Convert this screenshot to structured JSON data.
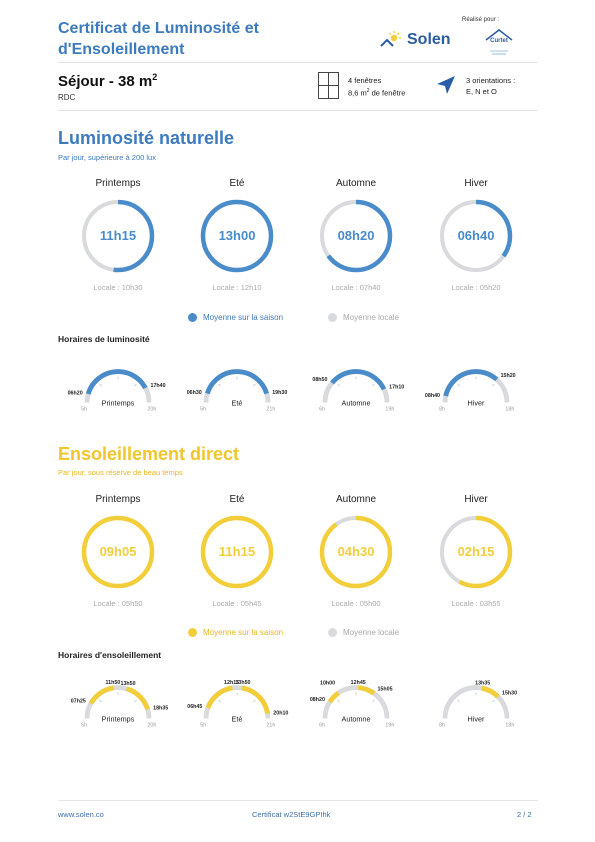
{
  "header": {
    "title": "Certificat de Luminosité et d'Ensoleillement",
    "brand": "Solen",
    "realise_label": "Réalisé pour :",
    "partner": "Curtet",
    "room": "Séjour - 38 m",
    "room_sup": "2",
    "floor": "RDC",
    "windows_line1": "4 fenêtres",
    "windows_line2": "8,6 m",
    "windows_sup": "2",
    "windows_line2_suffix": " de fenêtre",
    "orient_line1": "3 orientations :",
    "orient_line2": "E, N et O"
  },
  "colors": {
    "blue": "#4a8bc9",
    "yellow": "#f2ce3a",
    "grey": "#d8dadd",
    "title_blue": "#3d7bbf"
  },
  "luminosite": {
    "title": "Luminosité naturelle",
    "subtitle": "Par jour, supérieure à 200 lux",
    "legend_season": "Moyenne sur la saison",
    "legend_local": "Moyenne locale",
    "schedule_title": "Horaires de luminosité",
    "seasons": [
      {
        "name": "Printemps",
        "value": "11h15",
        "locale": "Locale : 10h30",
        "fraction": 0.52
      },
      {
        "name": "Eté",
        "value": "13h00",
        "locale": "Locale : 12h10",
        "fraction": 1.0
      },
      {
        "name": "Automne",
        "value": "08h20",
        "locale": "Locale : 07h40",
        "fraction": 0.65
      },
      {
        "name": "Hiver",
        "value": "06h40",
        "locale": "Locale : 05h20",
        "fraction": 0.35
      }
    ],
    "schedules": [
      {
        "name": "Printemps",
        "start": "5h",
        "end": "20h",
        "labels": [
          "06h20",
          "17h40"
        ],
        "spans": [
          [
            6.33,
            17.67
          ]
        ]
      },
      {
        "name": "Eté",
        "start": "5h",
        "end": "21h",
        "labels": [
          "06h30",
          "19h30"
        ],
        "spans": [
          [
            6.5,
            19.5
          ]
        ]
      },
      {
        "name": "Automne",
        "start": "6h",
        "end": "19h",
        "labels": [
          "08h50",
          "17h10"
        ],
        "spans": [
          [
            8.83,
            17.17
          ]
        ]
      },
      {
        "name": "Hiver",
        "start": "8h",
        "end": "18h",
        "labels": [
          "08h40",
          "15h20"
        ],
        "spans": [
          [
            8.67,
            15.33
          ]
        ]
      }
    ]
  },
  "ensoleillement": {
    "title": "Ensoleillement direct",
    "subtitle": "Par jour, sous réserve de beau temps",
    "legend_season": "Moyenne sur la saison",
    "legend_local": "Moyenne locale",
    "schedule_title": "Horaires d'ensoleillement",
    "seasons": [
      {
        "name": "Printemps",
        "value": "09h05",
        "locale": "Locale : 05h50",
        "fraction": 1.0
      },
      {
        "name": "Eté",
        "value": "11h15",
        "locale": "Locale : 05h45",
        "fraction": 1.0
      },
      {
        "name": "Automne",
        "value": "04h30",
        "locale": "Locale : 05h00",
        "fraction": 0.9
      },
      {
        "name": "Hiver",
        "value": "02h15",
        "locale": "Locale : 03h55",
        "fraction": 0.58
      }
    ],
    "schedules": [
      {
        "name": "Printemps",
        "start": "5h",
        "end": "20h",
        "labels": [
          "07h25",
          "11h50",
          "13h50",
          "18h35"
        ],
        "spans": [
          [
            7.42,
            11.83
          ],
          [
            13.83,
            18.58
          ]
        ]
      },
      {
        "name": "Eté",
        "start": "5h",
        "end": "21h",
        "labels": [
          "06h45",
          "12h15",
          "13h50",
          "20h10"
        ],
        "spans": [
          [
            6.75,
            12.25
          ],
          [
            13.83,
            20.17
          ]
        ]
      },
      {
        "name": "Automne",
        "start": "6h",
        "end": "19h",
        "labels": [
          "08h20",
          "10h00",
          "12h45",
          "15h05"
        ],
        "spans": [
          [
            8.33,
            10.0
          ],
          [
            12.75,
            15.08
          ]
        ]
      },
      {
        "name": "Hiver",
        "start": "8h",
        "end": "18h",
        "labels": [
          "13h35",
          "15h30"
        ],
        "spans": [
          [
            13.58,
            15.5
          ]
        ]
      }
    ]
  },
  "footer": {
    "site": "www.solen.co",
    "certificate": "Certificat w2StE9GPIhk",
    "page": "2 / 2"
  }
}
